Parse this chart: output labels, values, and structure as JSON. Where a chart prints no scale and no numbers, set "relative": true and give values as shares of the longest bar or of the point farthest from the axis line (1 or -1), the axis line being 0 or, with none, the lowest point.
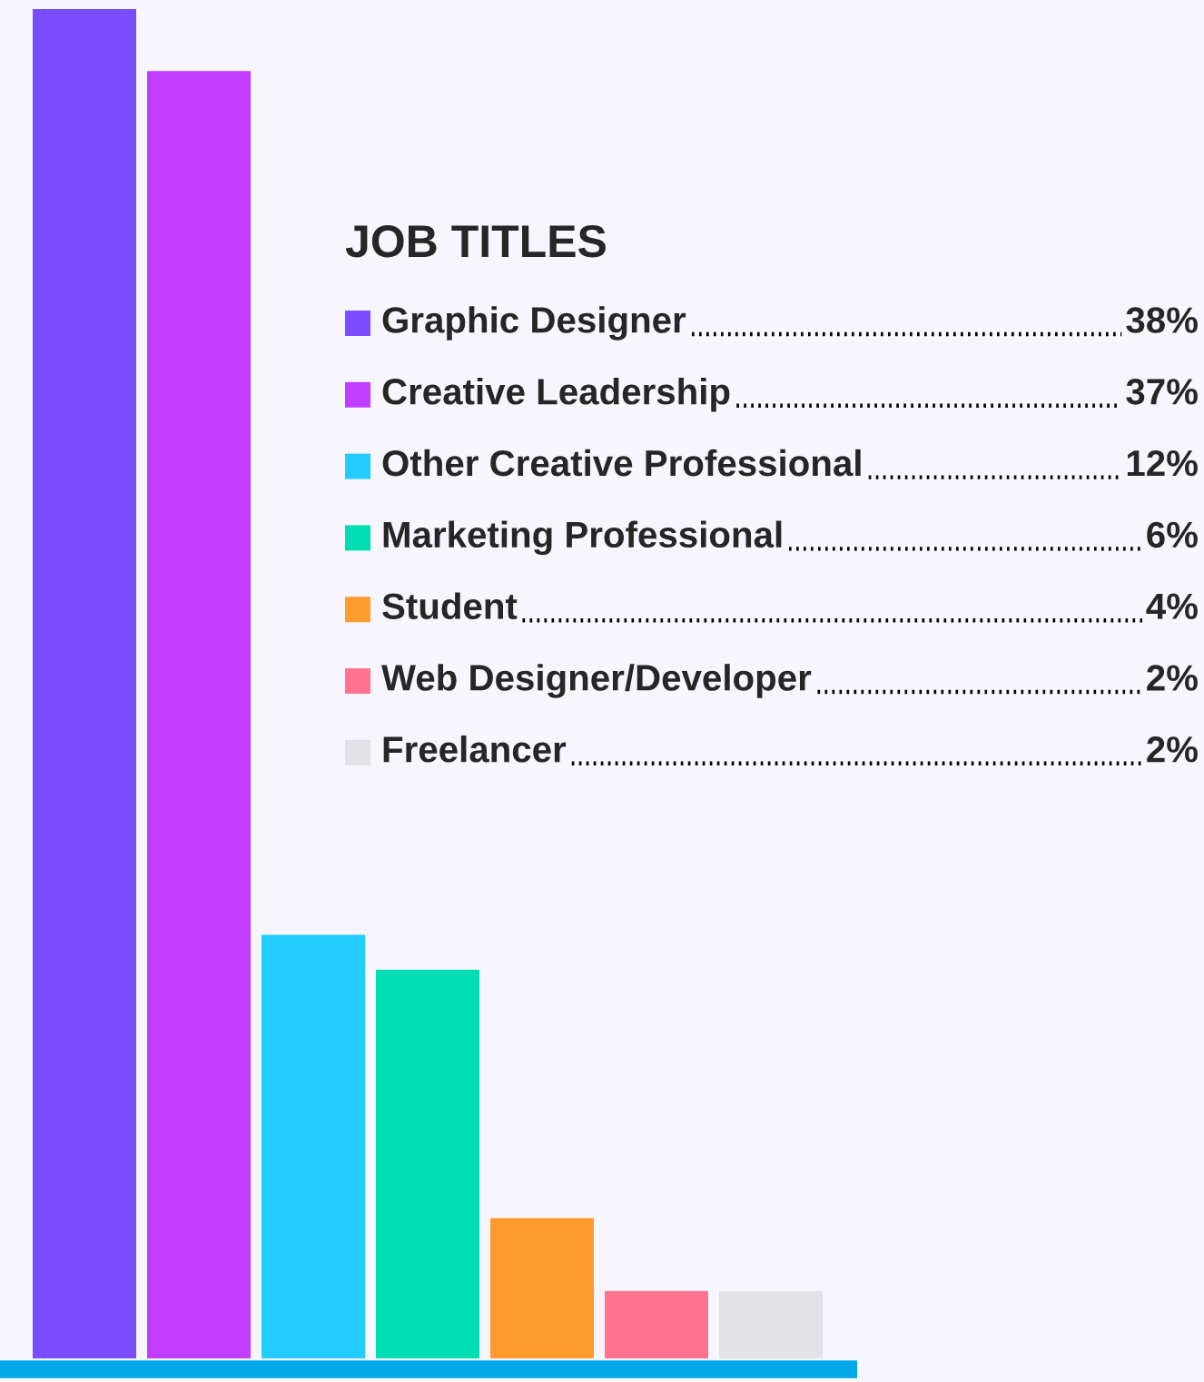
{
  "chart_data": [
    {
      "type": "bar",
      "relative": true,
      "grid": false,
      "categories": [
        null,
        null,
        null,
        null,
        null,
        null,
        null
      ],
      "values": [
        1,
        0.954,
        0.314,
        0.288,
        0.104,
        0.05,
        0.05
      ],
      "colors": [
        "#7c4dff",
        "#c13dff",
        "#22ccff",
        "#00ddb2",
        "#ff9a2e",
        "#ff7390",
        "#e1e1e6"
      ]
    },
    {
      "type": "other",
      "title": "JOB TITLES",
      "annotations": [
        "Graphic Designer",
        "38%",
        "Creative Leadership",
        "37%",
        "Other Creative Professional",
        "12%",
        "Marketing Professional",
        "6%",
        "Student",
        "4%",
        "Web Designer/Developer",
        "2%",
        "Freelancer",
        "2%"
      ]
    }
  ]
}
